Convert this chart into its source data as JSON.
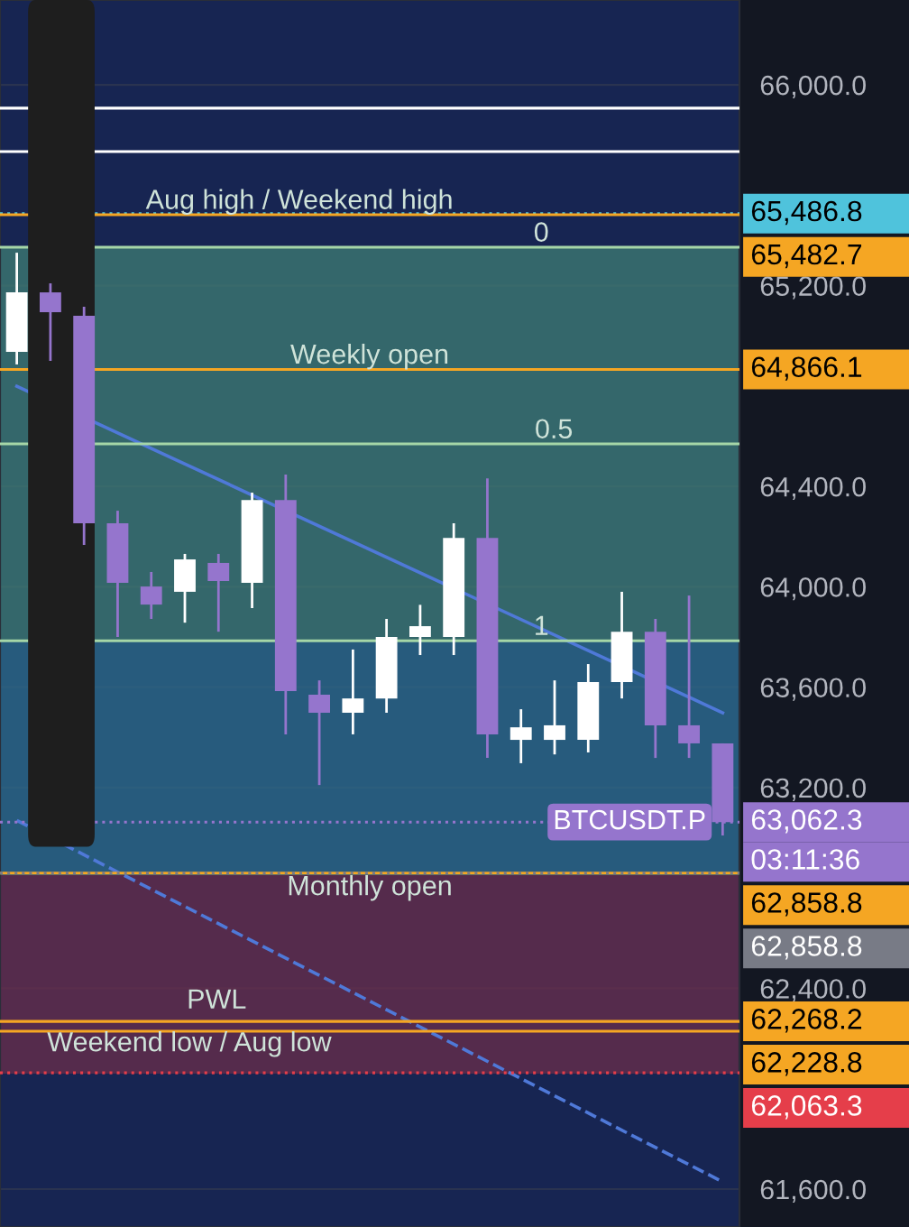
{
  "chart_data": {
    "type": "candlestick",
    "categories": [
      null,
      null,
      null,
      null,
      null,
      null,
      null,
      null,
      null,
      null,
      null,
      null,
      null,
      null,
      null,
      null,
      null,
      null,
      null,
      null,
      null,
      null
    ],
    "ohlc": [
      [
        64936,
        65331,
        64886,
        65173
      ],
      [
        65173,
        65209,
        64900,
        65094
      ],
      [
        65080,
        65116,
        64167,
        64253
      ],
      [
        64253,
        64303,
        63800,
        64016
      ],
      [
        64001,
        64059,
        63872,
        63929
      ],
      [
        63980,
        64131,
        63857,
        64109
      ],
      [
        64095,
        64131,
        63821,
        64023
      ],
      [
        64016,
        64375,
        63915,
        64346
      ],
      [
        64346,
        64447,
        63412,
        63584
      ],
      [
        63570,
        63627,
        63210,
        63498
      ],
      [
        63498,
        63750,
        63412,
        63555
      ],
      [
        63555,
        63872,
        63498,
        63800
      ],
      [
        63800,
        63928,
        63728,
        63843
      ],
      [
        63800,
        64253,
        63728,
        64195
      ],
      [
        64195,
        64432,
        63318,
        63412
      ],
      [
        63390,
        63512,
        63297,
        63440
      ],
      [
        63390,
        63627,
        63332,
        63448
      ],
      [
        63390,
        63692,
        63340,
        63620
      ],
      [
        63620,
        63980,
        63555,
        63821
      ],
      [
        63821,
        63872,
        63318,
        63448
      ],
      [
        63448,
        63965,
        63318,
        63376
      ],
      [
        63376,
        63376,
        63009,
        63062
      ]
    ],
    "colors": [
      "#ffffff",
      "#9575cd",
      "#9575cd",
      "#9575cd",
      "#9575cd",
      "#ffffff",
      "#9575cd",
      "#ffffff",
      "#9575cd",
      "#9575cd",
      "#ffffff",
      "#ffffff",
      "#ffffff",
      "#ffffff",
      "#9575cd",
      "#ffffff",
      "#ffffff",
      "#ffffff",
      "#ffffff",
      "#9575cd",
      "#9575cd",
      "#9575cd"
    ],
    "series": [
      {
        "type": "line",
        "values": [
          64799,
          null,
          null,
          null,
          null,
          null,
          null,
          null,
          null,
          null,
          null,
          null,
          null,
          null,
          null,
          null,
          null,
          null,
          null,
          null,
          null,
          63498
        ],
        "color": "#4f79d8",
        "line_style": "solid"
      },
      {
        "type": "line",
        "values": [
          63069,
          null,
          null,
          null,
          null,
          null,
          null,
          null,
          null,
          null,
          null,
          null,
          null,
          null,
          null,
          null,
          null,
          null,
          null,
          null,
          null,
          61629
        ],
        "color": "#4f79d8",
        "line_style": "dashed"
      }
    ],
    "ylim": [
      61449,
      66338
    ],
    "yticks": [
      {
        "value": 61600,
        "label": "61,600.0"
      },
      {
        "value": 62400,
        "label": "62,400.0"
      },
      {
        "value": 63200,
        "label": "63,200.0"
      },
      {
        "value": 63600,
        "label": "63,600.0"
      },
      {
        "value": 64000,
        "label": "64,000.0"
      },
      {
        "value": 64400,
        "label": "64,400.0"
      },
      {
        "value": 65200,
        "label": "65,200.0"
      },
      {
        "value": 66000,
        "label": "66,000.0"
      }
    ],
    "tick_labels": "y",
    "grid": "y",
    "bands": [
      {
        "axis": "y",
        "from": 63785,
        "to": 65353,
        "color": "#3f7d74"
      },
      {
        "axis": "y",
        "from": 62851,
        "to": 63785,
        "color": "#2e6d8c"
      },
      {
        "axis": "y",
        "from": 62060,
        "to": 62851,
        "color": "#6b2d4b"
      }
    ],
    "ref_lines": [
      {
        "axis": "y",
        "value": 65353,
        "color": "#a5d6a7",
        "line_style": "solid"
      },
      {
        "axis": "y",
        "value": 64569,
        "color": "#a5d6a7",
        "line_style": "solid"
      },
      {
        "axis": "y",
        "value": 63785,
        "color": "#a5d6a7",
        "line_style": "solid"
      },
      {
        "axis": "y",
        "value": 65907,
        "color": "#ffffff",
        "line_style": "solid"
      },
      {
        "axis": "y",
        "value": 65734,
        "color": "#ffffff",
        "line_style": "solid"
      },
      {
        "axis": "y",
        "value": 65486.8,
        "label": "65,486.8",
        "color": "#4fc3dc",
        "line_style": "dotted"
      },
      {
        "axis": "y",
        "value": 65482.7,
        "label": "65,482.7",
        "color": "#f5a623",
        "line_style": "solid"
      },
      {
        "axis": "y",
        "value": 64866.1,
        "label": "64,866.1",
        "color": "#f5a623",
        "line_style": "solid"
      },
      {
        "axis": "y",
        "value": 63062.3,
        "label": "63,062.3",
        "color": "#9575cd",
        "line_style": "dotted"
      },
      {
        "axis": "y",
        "value": 62858.8,
        "label": "62,858.8",
        "color": "#f5a623",
        "line_style": "solid"
      },
      {
        "axis": "y",
        "value": 62858.8,
        "label": "62,858.8",
        "color": "#787b86",
        "line_style": "dotted"
      },
      {
        "axis": "y",
        "value": 62268.2,
        "label": "62,268.2",
        "color": "#f5a623",
        "line_style": "solid"
      },
      {
        "axis": "y",
        "value": 62228.8,
        "label": "62,228.8",
        "color": "#f5a623",
        "line_style": "solid"
      },
      {
        "axis": "y",
        "value": 62063.3,
        "label": "62,063.3",
        "color": "#e53e4a",
        "line_style": "dotted"
      }
    ],
    "annotations": [
      {
        "text": "Aug high / Weekend high",
        "y": 65482.7
      },
      {
        "text": "Weekly open",
        "y": 64866.1
      },
      {
        "text": "Monthly open",
        "y": 62851
      },
      {
        "text": "PWL",
        "y": 62297
      },
      {
        "text": "Weekend low / Aug low",
        "y": 62228.8
      },
      {
        "text": "0",
        "y": 65353
      },
      {
        "text": "0.5",
        "y": 64569
      },
      {
        "text": "1",
        "y": 63785
      },
      {
        "text": "BTCUSDT.P",
        "y": 63062.3
      },
      "03:11:36"
    ]
  }
}
